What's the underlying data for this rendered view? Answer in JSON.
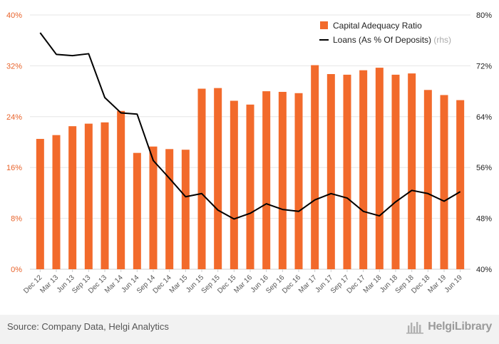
{
  "chart_data": {
    "type": "bar",
    "categories": [
      "Dec 12",
      "Mar 13",
      "Jun 13",
      "Sep 13",
      "Dec 13",
      "Mar 14",
      "Jun 14",
      "Sep 14",
      "Dec 14",
      "Mar 15",
      "Jun 15",
      "Sep 15",
      "Dec 15",
      "Mar 16",
      "Jun 16",
      "Sep 16",
      "Dec 16",
      "Mar 17",
      "Jun 17",
      "Sep 17",
      "Dec 17",
      "Mar 18",
      "Jun 18",
      "Sep 18",
      "Dec 18",
      "Mar 19",
      "Jun 19"
    ],
    "series": [
      {
        "name": "Capital Adequacy Ratio",
        "type": "bar",
        "axis": "left",
        "color": "#f26a2b",
        "values": [
          20.5,
          21.1,
          22.5,
          22.9,
          23.1,
          24.9,
          18.3,
          19.3,
          18.9,
          18.8,
          28.4,
          28.5,
          26.5,
          25.9,
          28.0,
          27.9,
          27.7,
          32.1,
          30.7,
          30.6,
          31.3,
          31.7,
          30.6,
          30.8,
          28.2,
          27.4,
          26.6
        ]
      },
      {
        "name": "Loans (As % Of Deposits)",
        "name_suffix": "(rhs)",
        "type": "line",
        "axis": "right",
        "color": "#000000",
        "values": [
          77.2,
          73.8,
          73.6,
          73.9,
          67.0,
          64.6,
          64.4,
          57.1,
          54.3,
          51.4,
          51.9,
          49.3,
          47.9,
          48.8,
          50.3,
          49.4,
          49.1,
          50.9,
          51.9,
          51.2,
          49.1,
          48.4,
          50.6,
          52.4,
          51.9,
          50.7,
          52.2
        ]
      }
    ],
    "left_axis": {
      "ylim": [
        0,
        40
      ],
      "ticks": [
        0,
        8,
        16,
        24,
        32,
        40
      ],
      "tick_labels": [
        "0%",
        "8%",
        "16%",
        "24%",
        "32%",
        "40%"
      ],
      "color": "#e8632b"
    },
    "right_axis": {
      "ylim": [
        40,
        80
      ],
      "ticks": [
        40,
        48,
        56,
        64,
        72,
        80
      ],
      "tick_labels": [
        "40%",
        "48%",
        "56%",
        "64%",
        "72%",
        "80%"
      ],
      "color": "#222222"
    },
    "grid": "horizontal",
    "legend_position": "top-right"
  },
  "footer": {
    "source": "Source: Company Data, Helgi Analytics",
    "brand": "HelgiLibrary"
  }
}
